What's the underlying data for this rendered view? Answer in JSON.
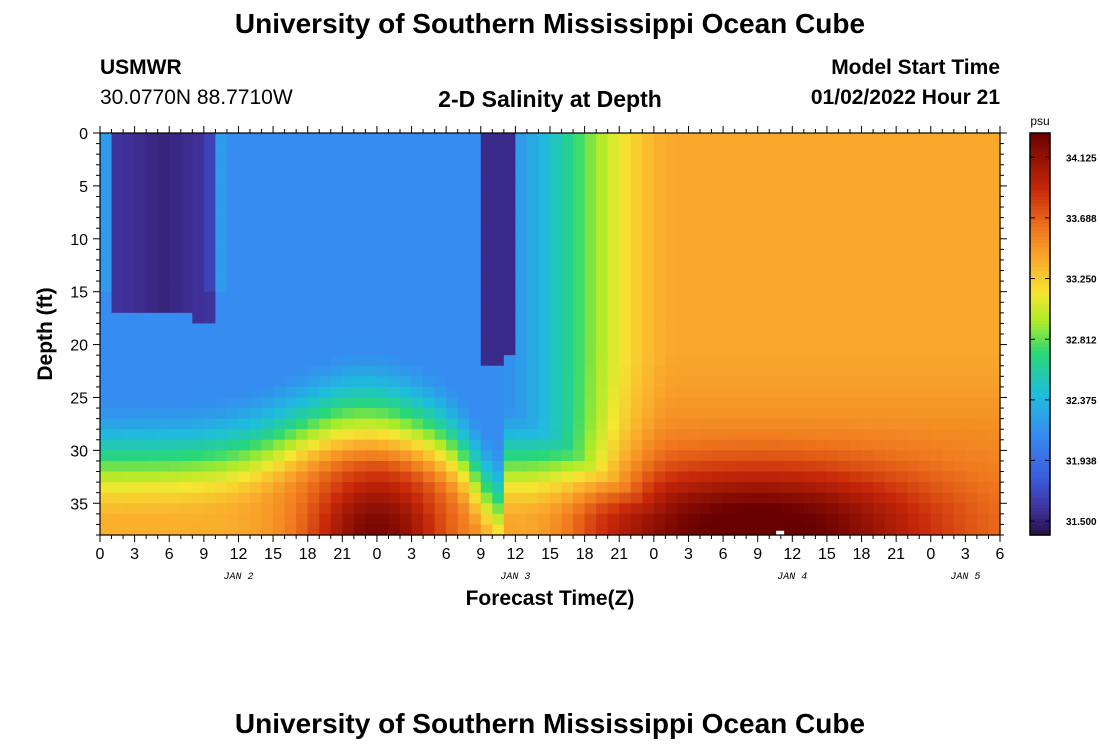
{
  "header": {
    "title": "University of Southern Mississippi Ocean Cube",
    "station": "USMWR",
    "coords": "30.0770N  88.7710W",
    "subtitle": "2-D Salinity at Depth",
    "model_start_label": "Model Start Time",
    "model_start_value": "01/02/2022 Hour 21"
  },
  "footer": {
    "title": "University of Southern Mississippi Ocean Cube"
  },
  "chart_data": {
    "type": "heatmap",
    "title": "2-D Salinity at Depth",
    "xlabel": "Forecast Time(Z)",
    "ylabel": "Depth (ft)",
    "x_range_hours": [
      0,
      78
    ],
    "y_range_ft": [
      0,
      38
    ],
    "x_ticks": [
      "0",
      "3",
      "6",
      "9",
      "12",
      "15",
      "18",
      "21",
      "0",
      "3",
      "6",
      "9",
      "12",
      "15",
      "18",
      "21",
      "0",
      "3",
      "6",
      "9",
      "12",
      "15",
      "18",
      "21",
      "0",
      "3",
      "6"
    ],
    "y_ticks": [
      "0",
      "5",
      "10",
      "15",
      "20",
      "25",
      "30",
      "35"
    ],
    "day_labels": [
      {
        "label": "JAN 2",
        "hour": 12
      },
      {
        "label": "JAN 3",
        "hour": 36
      },
      {
        "label": "JAN 4",
        "hour": 60
      },
      {
        "label": "JAN 5",
        "hour": 75
      }
    ],
    "colorbar": {
      "unit": "psu",
      "min": 31.4,
      "max": 34.3,
      "ticks": [
        "34.125",
        "33.688",
        "33.250",
        "32.812",
        "32.375",
        "31.938",
        "31.500"
      ]
    },
    "grid": false
  },
  "colors": {
    "low": "#2a0f4a",
    "mid": "#3a8cf0",
    "high": "#6b0000",
    "text": "#000000"
  }
}
